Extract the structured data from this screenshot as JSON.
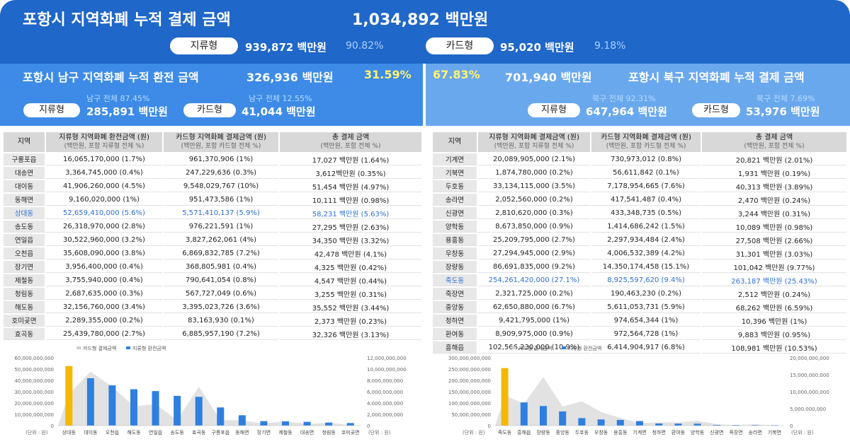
{
  "title": "포항시 지역화폐 누적 결제 금액",
  "total": "1,034,892 백만원",
  "paper_label": "지류형",
  "paper_total": "939,872 백만원",
  "paper_pct": "90.82%",
  "card_label": "카드형",
  "card_total": "95,020 백만원",
  "card_pct": "9.18%",
  "south": {
    "title": "포항시 남구 지역화폐 누적 환전 금액",
    "total": "326,936 백만원",
    "pct": "31.59%",
    "paper_sub": "남구 전체 87.45%",
    "card_sub": "남구 전체 12.55%",
    "paper_label": "지류형",
    "paper_value": "285,891 백만원",
    "card_label": "카드형",
    "card_value": "41,044 백만원"
  },
  "north": {
    "title": "포항시 북구 지역화폐 누적 결제 금액",
    "total": "701,940 백만원",
    "pct": "67.83%",
    "paper_sub": "북구 전체 92.31%",
    "card_sub": "북구 전체 7.69%",
    "paper_label": "지류형",
    "paper_value": "647,964 백만원",
    "card_label": "카드형",
    "card_value": "53,976 백만원"
  },
  "south_table": {
    "h_region": "지역",
    "h1": "지류형 지역화폐 환전금액 (원)",
    "h1s": "(백만원, 포함 지류형 전체 %)",
    "h2": "카드형 지역화폐 결제금액 (원)",
    "h2s": "(백만원, 포함 카드형 전체 %)",
    "h3": "총 결제 금액",
    "h3s": "(백만원, 포함 전체 %)",
    "rows": [
      {
        "r": "구룡포읍",
        "a": "16,065,170,000 (1.7%)",
        "b": "961,370,906 (1%)",
        "c": "17,027 백만원 (1.64%)"
      },
      {
        "r": "대송면",
        "a": "3,364,745,000 (0.4%)",
        "b": "247,229,636 (0.3%)",
        "c": "3,612백만원 (0.35%)"
      },
      {
        "r": "대이동",
        "a": "41,906,260,000 (4.5%)",
        "b": "9,548,029,767 (10%)",
        "c": "51,454 백만원 (4.97%)"
      },
      {
        "r": "동해면",
        "a": "9,160,020,000 (1%)",
        "b": "951,473,586 (1%)",
        "c": "10,111 백만원 (0.98%)"
      },
      {
        "r": "상대동",
        "a": "52,659,410,000 (5.6%)",
        "b": "5,571,410,137 (5.9%)",
        "c": "58,231 백만원 (5.63%)",
        "hl": true
      },
      {
        "r": "송도동",
        "a": "26,318,970,000 (2.8%)",
        "b": "976,221,591 (1%)",
        "c": "27,295 백만원 (2.63%)"
      },
      {
        "r": "연일읍",
        "a": "30,522,960,000 (3.2%)",
        "b": "3,827,262,061 (4%)",
        "c": "34,350 백만원 (3.32%)"
      },
      {
        "r": "오천읍",
        "a": "35,608,090,000 (3.8%)",
        "b": "6,869,832,785 (7.2%)",
        "c": "42,478 백만원 (4.1%)"
      },
      {
        "r": "장기면",
        "a": "3,956,400,000 (0.4%)",
        "b": "368,805,981 (0.4%)",
        "c": "4,325 백만원 (0.42%)"
      },
      {
        "r": "제철동",
        "a": "3,755,940,000 (0.4%)",
        "b": "790,641,054 (0.8%)",
        "c": "4,547 백만원 (0.44%)"
      },
      {
        "r": "청림동",
        "a": "2,687,635,000 (0.3%)",
        "b": "567,727,049 (0.6%)",
        "c": "3,255 백만원 (0.31%)"
      },
      {
        "r": "해도동",
        "a": "32,156,760,000 (3.4%)",
        "b": "3,395,023,726 (3.6%)",
        "c": "35,552 백만원 (3.44%)"
      },
      {
        "r": "호미곶면",
        "a": "2,289,355,000 (0.2%)",
        "b": "83,163,930 (0.1%)",
        "c": "2,373 백만원 (0.23%)"
      },
      {
        "r": "효곡동",
        "a": "25,439,780,000 (2.7%)",
        "b": "6,885,957,190 (7.2%)",
        "c": "32,326 백만원 (3.13%)"
      }
    ]
  },
  "north_table": {
    "h_region": "지역",
    "h1": "지류형 지역화폐 결제금액 (원)",
    "h1s": "(백만원, 포함 지류형 전체 %)",
    "h2": "카드형 지역화폐 결제금액 (원)",
    "h2s": "(백만원, 포함 카드형 전체 %)",
    "h3": "총 결제 금액",
    "h3s": "(백만원, 포함 전체 %)",
    "rows": [
      {
        "r": "기계면",
        "a": "20,089,905,000 (2.1%)",
        "b": "730,973,012 (0.8%)",
        "c": "20,821 백만원 (2.01%)"
      },
      {
        "r": "기북면",
        "a": "1,874,780,000 (0.2%)",
        "b": "56,611,842 (0.1%)",
        "c": "1,931 백만원 (0.19%)"
      },
      {
        "r": "두호동",
        "a": "33,134,115,000 (3.5%)",
        "b": "7,178,954,665 (7.6%)",
        "c": "40,313 백만원 (3.89%)"
      },
      {
        "r": "송라면",
        "a": "2,052,560,000 (0.2%)",
        "b": "417,541,487 (0.4%)",
        "c": "2,470 백만원 (0.24%)"
      },
      {
        "r": "신광면",
        "a": "2,810,620,000 (0.3%)",
        "b": "433,348,735 (0.5%)",
        "c": "3,244 백만원 (0.31%)"
      },
      {
        "r": "양학동",
        "a": "8,673,850,000 (0.9%)",
        "b": "1,414,686,242 (1.5%)",
        "c": "10,089 백만원 (0.98%)"
      },
      {
        "r": "용흥동",
        "a": "25,209,795,000 (2.7%)",
        "b": "2,297,934,484 (2.4%)",
        "c": "27,508 백만원 (2.66%)"
      },
      {
        "r": "우창동",
        "a": "27,294,945,000 (2.9%)",
        "b": "4,006,532,389 (4.2%)",
        "c": "31,301 백만원 (3.03%)"
      },
      {
        "r": "장량동",
        "a": "86,691,835,000 (9.2%)",
        "b": "14,350,174,458 (15.1%)",
        "c": "101,042 백만원 (9.77%)"
      },
      {
        "r": "죽도동",
        "a": "254,261,420,000 (27.1%)",
        "b": "8,925,597,620 (9.4%)",
        "c": "263,187 백만원 (25.43%)",
        "hl": true
      },
      {
        "r": "죽장면",
        "a": "2,321,725,000 (0.2%)",
        "b": "190,463,230 (0.2%)",
        "c": "2,512 백만원 (0.24%)"
      },
      {
        "r": "중앙동",
        "a": "62,650,880,000 (6.7%)",
        "b": "5,611,053,731 (5.9%)",
        "c": "68,262 백만원 (6.59%)"
      },
      {
        "r": "청하면",
        "a": "9,421,795,000 (1%)",
        "b": "974,654,344 (1%)",
        "c": "10,396 백만원 (1%)"
      },
      {
        "r": "환여동",
        "a": "8,909,975,000 (0.9%)",
        "b": "972,564,728 (1%)",
        "c": "9,883 백만원 (0.95%)"
      },
      {
        "r": "흥해읍",
        "a": "102,566,230,000 (10.9%)",
        "b": "6,414,904,917 (6.8%)",
        "c": "108,981 백만원 (10.53%)"
      }
    ]
  },
  "chart_data": [
    {
      "type": "bar",
      "legend": [
        "카드형 결제금액",
        "지류형 환전금액"
      ],
      "categories": [
        "상대동",
        "대이동",
        "오천읍",
        "해도동",
        "연일읍",
        "송도동",
        "효곡동",
        "구룡포읍",
        "동해면",
        "장기면",
        "제철동",
        "대송면",
        "청림동",
        "호미곶면"
      ],
      "series": [
        {
          "name": "지류형 환전금액",
          "axis": "left",
          "values": [
            52659410000,
            41906260000,
            35608090000,
            32156760000,
            30522960000,
            26318970000,
            25439780000,
            16065170000,
            9160020000,
            3956400000,
            3755940000,
            3364745000,
            2687635000,
            2289355000
          ]
        },
        {
          "name": "카드형 결제금액",
          "axis": "right",
          "type": "area",
          "values": [
            5571410137,
            9548029767,
            6869832785,
            3395023726,
            3827262061,
            976221591,
            6885957190,
            961370906,
            951473586,
            368805981,
            790641054,
            247229636,
            567727049,
            83163930
          ]
        }
      ],
      "yticks_left": [
        "60,000,000,000",
        "50,000,000,000",
        "40,000,000,000",
        "30,000,000,000",
        "20,000,000,000",
        "10,000,000,000",
        "0"
      ],
      "yticks_right": [
        "12,000,000,000",
        "10,000,000,000",
        "8,000,000,000",
        "6,000,000,000",
        "4,000,000,000",
        "2,000,000,000",
        "0"
      ],
      "ylim_left": [
        0,
        60000000000
      ],
      "ylim_right": [
        0,
        12000000000
      ],
      "unit_left": "(단위 : 원)",
      "unit_right": "(단위 : 원)"
    },
    {
      "type": "bar",
      "legend": [
        "카드형 결제금액",
        "지류형 환전금액"
      ],
      "categories": [
        "죽도동",
        "흥해읍",
        "장량동",
        "중앙동",
        "두호동",
        "우창동",
        "용흥동",
        "기계면",
        "청하면",
        "환여동",
        "양학동",
        "신광면",
        "죽장면",
        "송라면",
        "기북면"
      ],
      "series": [
        {
          "name": "지류형 환전금액",
          "axis": "left",
          "values": [
            254261420000,
            102566230000,
            86691835000,
            62650880000,
            33134115000,
            27294945000,
            25209795000,
            20089905000,
            9421795000,
            8909975000,
            8673850000,
            2810620000,
            2321725000,
            2052560000,
            1874780000
          ]
        },
        {
          "name": "카드형 결제금액",
          "axis": "right",
          "type": "area",
          "values": [
            8925597620,
            6414904917,
            14350174458,
            5611053731,
            7178954665,
            4006532389,
            2297934484,
            730973012,
            974654344,
            972564728,
            1414686242,
            433348735,
            190463230,
            417541487,
            56611842
          ]
        }
      ],
      "yticks_left": [
        "300,000,000,000",
        "250,000,000,000",
        "200,000,000,000",
        "150,000,000,000",
        "100,000,000,000",
        "50,000,000,000",
        "0"
      ],
      "yticks_right": [
        "20,000,000,000",
        "15,000,000,000",
        "10,000,000,000",
        "5,000,000,000",
        "0"
      ],
      "ylim_left": [
        0,
        300000000000
      ],
      "ylim_right": [
        0,
        20000000000
      ],
      "unit_left": "(단위 : 원)",
      "unit_right": "(단위 : 원)"
    }
  ],
  "colors": {
    "top": "#1f67c9",
    "south": "#3d8be6",
    "north": "#6aa8ee",
    "bar": "#2f7fe0",
    "barTop": "#f4b800",
    "area": "#dedede"
  }
}
